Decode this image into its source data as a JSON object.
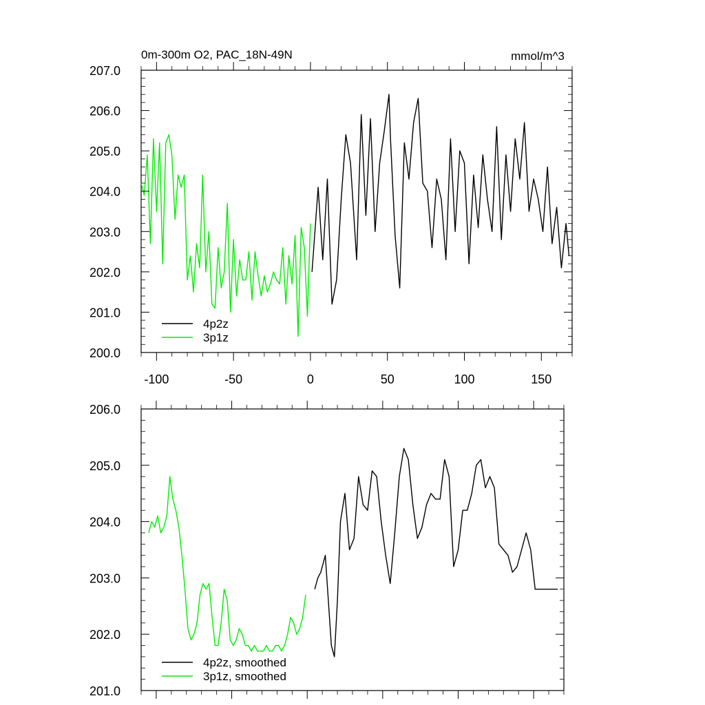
{
  "chart_data": [
    {
      "type": "line",
      "title": "0m-300m O2, PAC_18N-49N",
      "units": "mmol/m^3",
      "xlim": [
        -110,
        170
      ],
      "ylim": [
        200.0,
        207.0
      ],
      "xticks": [
        -100,
        -50,
        0,
        50,
        100,
        150
      ],
      "xtick_labels": [
        "-100",
        "-50",
        "0",
        "50",
        "100",
        "150"
      ],
      "yticks": [
        200,
        201,
        202,
        203,
        204,
        205,
        206,
        207
      ],
      "ytick_labels": [
        "200.0",
        "201.0",
        "202.0",
        "203.0",
        "204.0",
        "205.0",
        "206.0",
        "207.0"
      ],
      "legend_position": "bottom-left",
      "series": [
        {
          "name": "4p2z",
          "color": "#000000",
          "x": [
            1,
            5,
            8,
            11,
            14,
            17,
            20,
            23,
            26,
            30,
            33,
            36,
            39,
            42,
            45,
            48,
            51,
            52,
            55,
            58,
            61,
            64,
            67,
            70,
            73,
            76,
            79,
            82,
            85,
            88,
            91,
            94,
            97,
            100,
            103,
            106,
            109,
            112,
            115,
            118,
            121,
            124,
            127,
            130,
            133,
            136,
            139,
            142,
            145,
            148,
            151,
            154,
            157,
            160,
            163,
            166,
            168
          ],
          "values": [
            202.0,
            204.1,
            202.3,
            204.3,
            201.2,
            201.8,
            203.8,
            205.4,
            204.7,
            202.3,
            205.9,
            203.4,
            205.8,
            203.0,
            204.7,
            205.5,
            206.4,
            205.3,
            202.9,
            201.6,
            205.2,
            204.3,
            205.7,
            206.3,
            204.2,
            204.0,
            202.6,
            204.3,
            203.8,
            202.3,
            205.3,
            203.0,
            205.0,
            204.7,
            202.2,
            204.4,
            203.1,
            204.9,
            203.8,
            203.0,
            205.6,
            202.8,
            204.9,
            203.5,
            205.3,
            204.3,
            205.7,
            203.5,
            204.3,
            203.8,
            203.0,
            204.6,
            202.7,
            203.6,
            202.1,
            203.2,
            202.4
          ]
        },
        {
          "name": "3p1z",
          "color": "#00ee00",
          "x": [
            -110,
            -108,
            -106,
            -104,
            -102,
            -100,
            -98,
            -96,
            -94,
            -92,
            -90,
            -88,
            -86,
            -84,
            -82,
            -80,
            -78,
            -76,
            -74,
            -72,
            -70,
            -68,
            -66,
            -64,
            -62,
            -60,
            -58,
            -56,
            -54,
            -52,
            -50,
            -48,
            -46,
            -44,
            -42,
            -40,
            -38,
            -36,
            -34,
            -32,
            -30,
            -28,
            -26,
            -24,
            -22,
            -20,
            -18,
            -16,
            -14,
            -12,
            -10,
            -8,
            -6,
            -4,
            -2,
            0
          ],
          "values": [
            204.2,
            203.9,
            204.9,
            202.7,
            205.3,
            203.5,
            205.2,
            202.2,
            205.2,
            205.4,
            204.9,
            203.3,
            204.4,
            204.1,
            204.4,
            201.8,
            202.4,
            201.5,
            202.7,
            202.1,
            204.4,
            202.0,
            203.0,
            201.2,
            201.1,
            202.6,
            201.6,
            202.0,
            203.7,
            201.0,
            202.8,
            201.4,
            202.3,
            201.8,
            201.8,
            202.5,
            201.3,
            202.5,
            201.9,
            201.4,
            201.9,
            201.5,
            201.7,
            202.0,
            201.8,
            201.7,
            202.6,
            201.2,
            202.4,
            201.7,
            202.9,
            200.4,
            203.1,
            202.6,
            200.9,
            203.2
          ]
        }
      ]
    },
    {
      "type": "line",
      "xlim": [
        -110,
        170
      ],
      "ylim": [
        201.0,
        206.0
      ],
      "xticks": [
        -100,
        -50,
        0,
        50,
        100,
        150
      ],
      "yticks": [
        201,
        202,
        203,
        204,
        205,
        206
      ],
      "ytick_labels": [
        "201.0",
        "202.0",
        "203.0",
        "204.0",
        "205.0",
        "206.0"
      ],
      "legend_position": "bottom-left",
      "series": [
        {
          "name": "4p2z, smoothed",
          "color": "#000000",
          "x": [
            5,
            7,
            9,
            12,
            14,
            16,
            18,
            20,
            22,
            25,
            28,
            31,
            34,
            37,
            40,
            43,
            46,
            49,
            52,
            55,
            58,
            61,
            64,
            67,
            70,
            73,
            76,
            79,
            82,
            85,
            88,
            91,
            94,
            97,
            100,
            103,
            106,
            109,
            112,
            115,
            118,
            121,
            124,
            127,
            130,
            133,
            136,
            139,
            142,
            145,
            148,
            151,
            154,
            157,
            160,
            163,
            166
          ],
          "values": [
            202.8,
            203.0,
            203.1,
            203.4,
            202.6,
            201.8,
            201.6,
            202.6,
            204.0,
            204.5,
            203.5,
            203.7,
            204.8,
            204.3,
            204.2,
            204.9,
            204.8,
            204.0,
            203.4,
            202.9,
            203.8,
            204.8,
            205.3,
            205.1,
            204.3,
            203.7,
            203.9,
            204.3,
            204.5,
            204.4,
            204.4,
            205.1,
            204.8,
            203.2,
            203.5,
            204.2,
            204.2,
            204.5,
            205.0,
            205.1,
            204.6,
            204.8,
            204.6,
            203.6,
            203.5,
            203.4,
            203.1,
            203.2,
            203.5,
            203.8,
            203.5,
            202.8,
            202.8,
            202.8,
            202.8,
            202.8,
            202.8
          ]
        },
        {
          "name": "3p1z, smoothed",
          "color": "#00ee00",
          "x": [
            -105,
            -103,
            -101,
            -99,
            -97,
            -95,
            -93,
            -91,
            -89,
            -87,
            -85,
            -83,
            -81,
            -79,
            -77,
            -75,
            -73,
            -71,
            -69,
            -67,
            -65,
            -63,
            -61,
            -59,
            -57,
            -55,
            -53,
            -51,
            -49,
            -47,
            -45,
            -43,
            -41,
            -39,
            -37,
            -35,
            -33,
            -31,
            -29,
            -27,
            -25,
            -23,
            -21,
            -19,
            -17,
            -15,
            -13,
            -11,
            -9,
            -7,
            -5,
            -3,
            -1
          ],
          "values": [
            203.8,
            204.0,
            203.9,
            204.1,
            203.8,
            203.9,
            204.1,
            204.8,
            204.4,
            204.2,
            203.9,
            203.4,
            202.8,
            202.1,
            201.9,
            202.0,
            202.2,
            202.7,
            202.9,
            202.8,
            202.9,
            202.3,
            201.8,
            201.8,
            202.2,
            202.8,
            202.6,
            201.9,
            201.8,
            201.9,
            202.1,
            202.0,
            201.8,
            201.8,
            201.7,
            201.8,
            201.7,
            201.7,
            201.7,
            201.8,
            201.7,
            201.7,
            201.8,
            201.8,
            201.7,
            201.8,
            202.0,
            202.3,
            202.2,
            202.0,
            202.1,
            202.3,
            202.7
          ]
        }
      ]
    }
  ]
}
